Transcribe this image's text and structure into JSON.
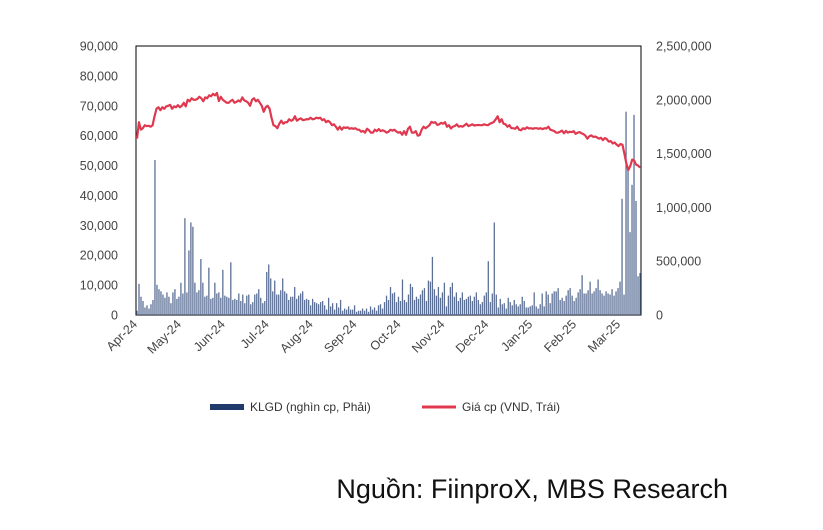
{
  "colors": {
    "volume_bar": "#5b6f95",
    "volume_legend": "#1f3a6b",
    "price_line": "#e0384f",
    "axis": "#000000"
  },
  "chart_data": {
    "type": "bar-line-combo",
    "x_tick_labels": [
      "Apr-24",
      "May-24",
      "Jun-24",
      "Jul-24",
      "Aug-24",
      "Sep-24",
      "Oct-24",
      "Nov-24",
      "Dec-24",
      "Jan-25",
      "Feb-25",
      "Mar-25"
    ],
    "left_axis": {
      "range": [
        0,
        90000
      ],
      "tick_labels": [
        "0",
        "10,000",
        "20,000",
        "30,000",
        "40,000",
        "50,000",
        "60,000",
        "70,000",
        "80,000",
        "90,000"
      ]
    },
    "right_axis": {
      "range": [
        0,
        2500000
      ],
      "tick_labels": [
        "0",
        "500,000",
        "1,000,000",
        "1,500,000",
        "2,000,000",
        "2,500,000"
      ]
    },
    "legend": {
      "placement": "bottom-center"
    },
    "series": [
      {
        "name": "KLGD (nghìn cp, Phải)",
        "kind": "bar",
        "values": [
          40000,
          290000,
          170000,
          130000,
          70000,
          90000,
          60000,
          100000,
          140000,
          1440000,
          280000,
          240000,
          220000,
          190000,
          160000,
          210000,
          170000,
          110000,
          210000,
          240000,
          150000,
          170000,
          300000,
          200000,
          900000,
          210000,
          600000,
          860000,
          820000,
          300000,
          210000,
          230000,
          520000,
          300000,
          170000,
          180000,
          440000,
          150000,
          160000,
          300000,
          200000,
          210000,
          160000,
          420000,
          180000,
          170000,
          160000,
          490000,
          140000,
          150000,
          140000,
          200000,
          130000,
          190000,
          110000,
          180000,
          190000,
          100000,
          120000,
          190000,
          200000,
          240000,
          160000,
          110000,
          130000,
          400000,
          470000,
          340000,
          220000,
          320000,
          190000,
          190000,
          230000,
          340000,
          220000,
          200000,
          140000,
          170000,
          170000,
          260000,
          150000,
          180000,
          200000,
          220000,
          140000,
          150000,
          140000,
          90000,
          150000,
          120000,
          110000,
          100000,
          120000,
          130000,
          90000,
          50000,
          160000,
          80000,
          110000,
          50000,
          110000,
          70000,
          140000,
          40000,
          60000,
          50000,
          80000,
          50000,
          50000,
          90000,
          30000,
          40000,
          40000,
          60000,
          40000,
          60000,
          30000,
          80000,
          50000,
          70000,
          40000,
          90000,
          100000,
          60000,
          120000,
          180000,
          140000,
          260000,
          200000,
          210000,
          120000,
          170000,
          130000,
          330000,
          140000,
          120000,
          190000,
          290000,
          260000,
          140000,
          170000,
          150000,
          190000,
          230000,
          250000,
          130000,
          320000,
          310000,
          540000,
          240000,
          180000,
          260000,
          160000,
          210000,
          300000,
          80000,
          180000,
          260000,
          300000,
          170000,
          210000,
          130000,
          160000,
          210000,
          140000,
          150000,
          170000,
          180000,
          130000,
          170000,
          210000,
          140000,
          100000,
          120000,
          180000,
          210000,
          500000,
          120000,
          200000,
          860000,
          190000,
          70000,
          150000,
          100000,
          110000,
          60000,
          160000,
          120000,
          90000,
          140000,
          100000,
          80000,
          100000,
          170000,
          130000,
          70000,
          70000,
          80000,
          90000,
          210000,
          80000,
          60000,
          100000,
          200000,
          80000,
          220000,
          190000,
          110000,
          200000,
          220000,
          220000,
          250000,
          140000,
          160000,
          130000,
          180000,
          230000,
          250000,
          180000,
          130000,
          160000,
          210000,
          240000,
          370000,
          200000,
          200000,
          230000,
          310000,
          200000,
          220000,
          250000,
          330000,
          230000,
          200000,
          180000,
          220000,
          200000,
          190000,
          240000,
          180000,
          220000,
          250000,
          310000,
          1080000,
          190000,
          1890000,
          1370000,
          770000,
          1210000,
          1860000,
          1060000,
          360000,
          390000
        ],
        "ylim": [
          0,
          2500000
        ]
      },
      {
        "name": "Giá cp (VND, Trái)",
        "kind": "line",
        "values": [
          59000,
          64500,
          62000,
          62500,
          63500,
          63200,
          63300,
          63000,
          63500,
          66500,
          69000,
          69500,
          68500,
          69500,
          69000,
          69800,
          70000,
          70300,
          69000,
          69800,
          69500,
          70200,
          69500,
          70000,
          71000,
          69800,
          72000,
          71500,
          72500,
          72000,
          72000,
          72300,
          73000,
          72500,
          71500,
          72800,
          72500,
          73500,
          73200,
          74000,
          73500,
          74300,
          71600,
          73000,
          72000,
          71500,
          71000,
          71000,
          71600,
          72000,
          71000,
          71300,
          71800,
          71400,
          72800,
          71800,
          71500,
          71000,
          70000,
          72000,
          72500,
          71500,
          72000,
          71000,
          70000,
          68000,
          69500,
          70000,
          69000,
          66000,
          63500,
          63200,
          62500,
          64000,
          65000,
          64000,
          64500,
          64500,
          65500,
          65000,
          65300,
          66500,
          65000,
          65500,
          65800,
          65200,
          65300,
          65500,
          65500,
          66000,
          65500,
          65600,
          66000,
          65800,
          66000,
          65200,
          65500,
          64500,
          65000,
          64500,
          63500,
          63800,
          63000,
          62000,
          63000,
          62000,
          62800,
          62600,
          62800,
          62300,
          62500,
          62300,
          62500,
          62000,
          62000,
          61300,
          61600,
          61000,
          62300,
          61800,
          61000,
          61000,
          62000,
          61500,
          62200,
          61500,
          61800,
          61500,
          61000,
          61300,
          62000,
          61700,
          62000,
          61400,
          61000,
          61200,
          60300,
          61500,
          60300,
          62300,
          63000,
          61000,
          61000,
          61500,
          60000,
          60200,
          62000,
          63000,
          62500,
          63000,
          63500,
          64600,
          64300,
          64500,
          63600,
          63800,
          64300,
          64000,
          64500,
          63000,
          63500,
          62400,
          63000,
          63200,
          63800,
          63000,
          63200,
          63000,
          63500,
          64000,
          63200,
          63500,
          63800,
          63400,
          63500,
          63600,
          63500,
          63500,
          63800,
          63600,
          63500,
          64000,
          64200,
          64600,
          65500,
          66500,
          64500,
          65500,
          64000,
          63800,
          63000,
          63500,
          62500,
          62500,
          62300,
          63000,
          62000,
          61800,
          62500,
          62200,
          62800,
          62400,
          62500,
          62300,
          62500,
          62500,
          62300,
          62500,
          62200,
          62500,
          62400,
          63000,
          62000,
          61800,
          61500,
          61000,
          61000,
          61300,
          61700,
          60800,
          61600,
          61000,
          61300,
          61200,
          61500,
          60600,
          61000,
          61200,
          60800,
          60500,
          60000,
          59000,
          59800,
          60100,
          59600,
          59700,
          59400,
          59000,
          59300,
          58500,
          59200,
          58800,
          58000,
          58200,
          57400,
          57700,
          57000,
          56500,
          57200,
          57000,
          54000,
          50700,
          48500,
          49800,
          52000,
          51700,
          50300,
          50000,
          49300
        ],
        "ylim": [
          0,
          90000
        ]
      }
    ]
  },
  "source": "Nguồn: FiinproX, MBS Research"
}
